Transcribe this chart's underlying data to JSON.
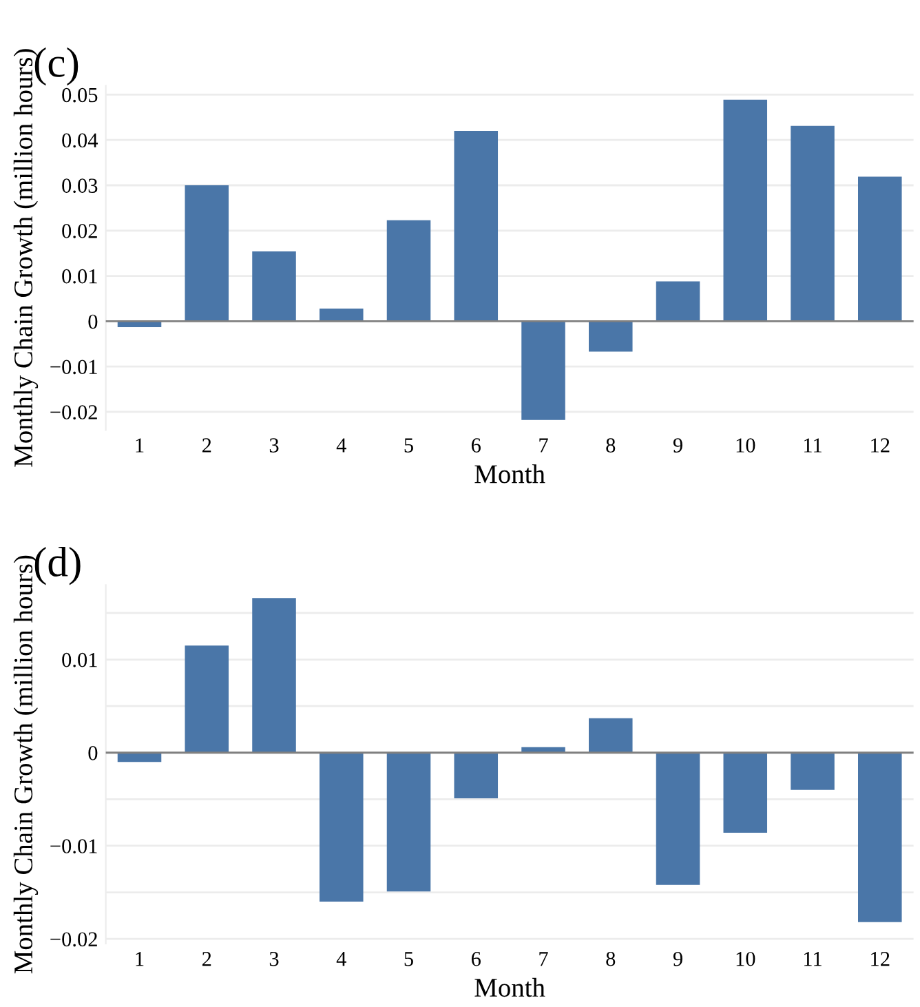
{
  "chart_data": [
    {
      "type": "bar",
      "title": "(c)",
      "xlabel": "Month",
      "ylabel": "Monthly Chain Growth (million hours)",
      "categories": [
        "1",
        "2",
        "3",
        "4",
        "5",
        "6",
        "7",
        "8",
        "9",
        "10",
        "11",
        "12"
      ],
      "values": [
        -0.0013,
        0.03,
        0.0154,
        0.0028,
        0.0223,
        0.042,
        -0.0218,
        -0.0067,
        0.0088,
        0.0489,
        0.0431,
        0.0319
      ],
      "color": "#4a76a8",
      "ylim": [
        -0.024,
        0.052
      ],
      "yticks": [
        {
          "value": -0.02,
          "label": "−0.02"
        },
        {
          "value": -0.01,
          "label": "−0.01"
        },
        0,
        0.01,
        0.02,
        0.03,
        0.04,
        0.05
      ],
      "grid": "y"
    },
    {
      "type": "bar",
      "title": "(d)",
      "xlabel": "Month",
      "ylabel": "Monthly Chain Growth (million hours)",
      "categories": [
        "1",
        "2",
        "3",
        "4",
        "5",
        "6",
        "7",
        "8",
        "9",
        "10",
        "11",
        "12"
      ],
      "values": [
        -0.001,
        0.0115,
        0.0166,
        -0.016,
        -0.0149,
        -0.0049,
        0.0006,
        0.0037,
        -0.0142,
        -0.0086,
        -0.004,
        -0.0182
      ],
      "color": "#4a76a8",
      "ylim": [
        -0.0205,
        0.018
      ],
      "yticks": [
        {
          "value": -0.02,
          "label": "−0.02"
        },
        {
          "value": -0.015,
          "label": null
        },
        {
          "value": -0.01,
          "label": "−0.01"
        },
        {
          "value": -0.005,
          "label": null
        },
        0,
        {
          "value": 0.005,
          "label": null
        },
        0.01,
        {
          "value": 0.015,
          "label": null
        }
      ],
      "grid": "y"
    }
  ]
}
